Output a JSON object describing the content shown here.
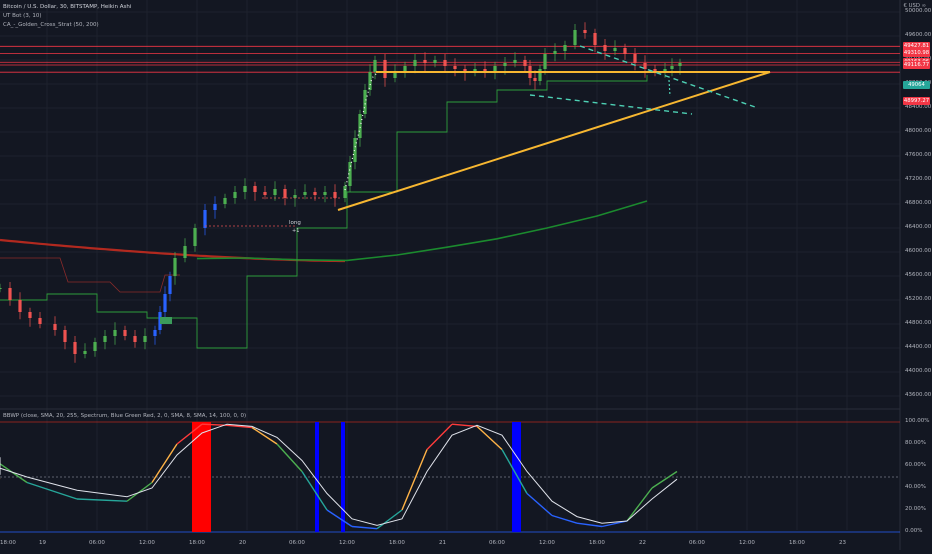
{
  "header": {
    "symbol_line": "Bitcoin / U.S. Dollar, 30, BITSTAMP, Heikin Ashi",
    "indicator_1": "UT Bot (3, 10)",
    "indicator_2": "CA_-_Golden_Cross_Strat (50, 200)",
    "currency": "€ USD ∞"
  },
  "colors": {
    "background": "#131722",
    "bull": "#4caf50",
    "bear": "#ef5350",
    "ut_blue": "#2962ff",
    "trend_yellow": "#f7b731",
    "channel_teal": "#4dd0b4",
    "ma_long": "#b2291f",
    "ma_short": "#1b8a2e",
    "horizontal_lines": "#f23645",
    "trail_stop": "#2e9e3c"
  },
  "annotations": {
    "long_label": "long",
    "long_sub": "+1"
  },
  "price_axis": {
    "ticks": [
      "50000.00",
      "49600.00",
      "49200.00",
      "48800.00",
      "48400.00",
      "48000.00",
      "47600.00",
      "47200.00",
      "46800.00",
      "46400.00",
      "46000.00",
      "45600.00",
      "45200.00",
      "44800.00",
      "44400.00",
      "44000.00",
      "43600.00"
    ],
    "tags": [
      {
        "label": "49427.81",
        "color": "#f23645"
      },
      {
        "label": "49310.98",
        "color": "#f23645"
      },
      {
        "label": "49163.06",
        "color": "#f23645"
      },
      {
        "label": "49116.77",
        "color": "#f23645"
      },
      {
        "label": "49064",
        "color": "#26a69a"
      },
      {
        "label": "48997.27",
        "color": "#f23645"
      }
    ]
  },
  "time_axis": {
    "labels": [
      "18:00",
      "19",
      "06:00",
      "12:00",
      "18:00",
      "20",
      "06:00",
      "12:00",
      "18:00",
      "21",
      "06:00",
      "12:00",
      "18:00",
      "22",
      "06:00",
      "12:00",
      "18:00",
      "23"
    ]
  },
  "oscillator": {
    "legend": "BBWP (close, SMA, 20, 255, Spectrum, Blue Green Red, 2, 0, SMA, 8, SMA, 14, 100, 0, 0)",
    "ticks": [
      "100.00%",
      "80.00%",
      "60.00%",
      "40.00%",
      "20.00%",
      "0.00%"
    ]
  },
  "chart_data": [
    {
      "type": "line",
      "title": "Bitcoin / U.S. Dollar, 30, BITSTAMP, Heikin Ashi",
      "chart_style": "heikin-ashi candles",
      "ylim": [
        43400,
        50200
      ],
      "y_scale": "linear",
      "grid": true,
      "series": [
        {
          "name": "UT Bot (3, 10)",
          "role": "trailing stop",
          "x": [
            "18 12:00",
            "18 18:00",
            "19 00:00",
            "19 06:00",
            "19 12:00",
            "19 18:00",
            "20 00:00",
            "20 06:00",
            "20 12:00",
            "20 18:00",
            "21 00:00",
            "21 06:00",
            "21 12:00",
            "21 18:00"
          ],
          "values": [
            45200,
            45300,
            45000,
            44900,
            44400,
            45600,
            46400,
            47000,
            48000,
            48500,
            48700,
            48850,
            48850,
            48950
          ]
        },
        {
          "name": "CA_-_Golden_Cross_Strat (50, 200)",
          "role": "200 MA",
          "x": [
            "18 12:00",
            "18 18:00",
            "19 00:00",
            "19 06:00",
            "19 12:00",
            "19 18:00",
            "20 00:00",
            "20 06:00"
          ],
          "values": [
            46200,
            46150,
            46060,
            45960,
            45880,
            45850,
            45830,
            45850
          ]
        },
        {
          "name": "CA_-_Golden_Cross_Strat (50, 200)",
          "role": "50 MA",
          "x": [
            "19 12:00",
            "19 18:00",
            "20 00:00",
            "20 06:00",
            "20 12:00",
            "20 18:00",
            "21 00:00",
            "21 06:00",
            "21 12:00",
            "21 18:00"
          ],
          "values": [
            45890,
            45900,
            45870,
            45860,
            45950,
            46080,
            46220,
            46400,
            46600,
            46850
          ]
        }
      ],
      "trend_lines": [
        {
          "kind": "ascending support",
          "from": [
            "20 06:00",
            46900
          ],
          "to": [
            "22 03:00",
            49520
          ]
        },
        {
          "kind": "horizontal resistance",
          "from": [
            "20 12:00",
            49520
          ],
          "to": [
            "22 03:00",
            49520
          ]
        },
        {
          "kind": "upper channel",
          "from": [
            "21 12:00",
            49800
          ],
          "to": [
            "22 09:00",
            49000
          ]
        },
        {
          "kind": "lower channel",
          "from": [
            "21 06:00",
            49000
          ],
          "to": [
            "21 21:00",
            48800
          ]
        }
      ],
      "horizontal_levels": [
        49427.81,
        49310.98,
        49163.06,
        49116.77,
        48997.27
      ],
      "last_price": 49064
    },
    {
      "type": "line",
      "title": "BBWP (close, SMA, 20, 255, Spectrum, Blue Green Red, 2, 0, SMA, 8, SMA, 14, 100, 0, 0)",
      "ylim": [
        0,
        100
      ],
      "ylabel": "%",
      "reference_lines": [
        100,
        50,
        0
      ],
      "extreme_high_bars_x": [
        "19 09:00 – 19 12:00"
      ],
      "extreme_low_bars_x": [
        "20 03:00",
        "20 06:00",
        "21 03:00"
      ],
      "series": [
        {
          "name": "BBWP",
          "values": [
            60,
            72,
            57,
            48,
            62,
            45,
            30,
            28,
            45,
            80,
            98,
            97,
            95,
            80,
            55,
            20,
            5,
            3,
            20,
            75,
            98,
            96,
            75,
            35,
            15,
            8,
            5,
            10,
            40,
            55,
            45,
            20,
            18
          ]
        },
        {
          "name": "MA",
          "values": [
            62,
            68,
            60,
            52,
            58,
            50,
            38,
            32,
            40,
            70,
            90,
            98,
            96,
            86,
            65,
            35,
            12,
            6,
            12,
            55,
            88,
            97,
            88,
            55,
            28,
            14,
            8,
            10,
            30,
            48,
            48,
            32,
            24
          ]
        }
      ],
      "x": [
        "17 12:00",
        "17 18:00",
        "18 00:00",
        "18 06:00",
        "18 12:00",
        "18 18:00",
        "19 00:00",
        "19 06:00",
        "19 09:00",
        "19 12:00",
        "19 15:00",
        "19 18:00",
        "19 21:00",
        "20 00:00",
        "20 03:00",
        "20 06:00",
        "20 09:00",
        "20 12:00",
        "20 15:00",
        "20 18:00",
        "20 21:00",
        "21 00:00",
        "21 03:00",
        "21 06:00",
        "21 09:00",
        "21 12:00",
        "21 15:00",
        "21 18:00",
        "21 21:00",
        "22 00:00",
        "22 03:00",
        "22 06:00",
        "22 09:00"
      ]
    }
  ]
}
